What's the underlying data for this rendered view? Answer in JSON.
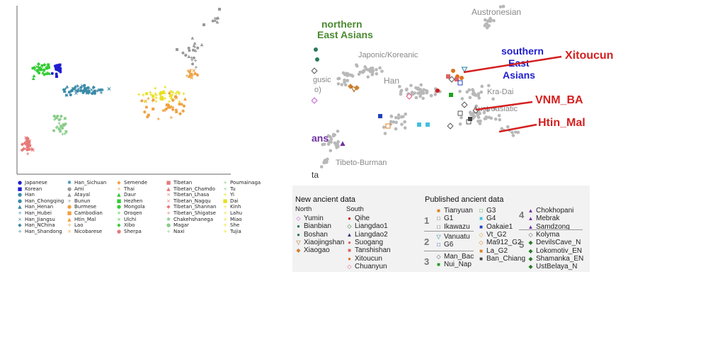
{
  "chart_data": [
    {
      "type": "scatter",
      "title": "",
      "xlabel": "",
      "ylabel": "",
      "legend_position": "bottom",
      "series": [
        {
          "name": "Japanese",
          "color": "#1f1fd0",
          "marker": "●"
        },
        {
          "name": "Korean",
          "color": "#1f1fd0",
          "marker": "■"
        },
        {
          "name": "Han",
          "color": "#3a8aa8",
          "marker": "●"
        },
        {
          "name": "Han_Chongqing",
          "color": "#3a8aa8",
          "marker": "●"
        },
        {
          "name": "Han_Henan",
          "color": "#3a8aa8",
          "marker": "▲"
        },
        {
          "name": "Han_Hubei",
          "color": "#3a8aa8",
          "marker": "+"
        },
        {
          "name": "Han_Jiangsu",
          "color": "#3a8aa8",
          "marker": "×"
        },
        {
          "name": "Han_NChina",
          "color": "#3a8aa8",
          "marker": "◆"
        },
        {
          "name": "Han_Shandong",
          "color": "#3a8aa8",
          "marker": "+"
        },
        {
          "name": "Han_Sichuan",
          "color": "#3a8aa8",
          "marker": "✱"
        },
        {
          "name": "Ami",
          "color": "#999999",
          "marker": "●"
        },
        {
          "name": "Atayal",
          "color": "#999999",
          "marker": "▲"
        },
        {
          "name": "Bunun",
          "color": "#999999",
          "marker": "+"
        },
        {
          "name": "Burmese",
          "color": "#f0a040",
          "marker": "●"
        },
        {
          "name": "Cambodian",
          "color": "#f0a040",
          "marker": "■"
        },
        {
          "name": "Htin_Mal",
          "color": "#f0a040",
          "marker": "▲"
        },
        {
          "name": "Lao",
          "color": "#f0a040",
          "marker": "+"
        },
        {
          "name": "Nicobarese",
          "color": "#f0a040",
          "marker": "×"
        },
        {
          "name": "Semende",
          "color": "#f0a040",
          "marker": "◆"
        },
        {
          "name": "Thai",
          "color": "#f0a040",
          "marker": "+"
        },
        {
          "name": "Daur",
          "color": "#33cc33",
          "marker": "▲"
        },
        {
          "name": "Hezhen",
          "color": "#33cc33",
          "marker": "■"
        },
        {
          "name": "Mongola",
          "color": "#33cc33",
          "marker": "●"
        },
        {
          "name": "Oroqen",
          "color": "#33cc33",
          "marker": "+"
        },
        {
          "name": "Ulchi",
          "color": "#33cc33",
          "marker": "×"
        },
        {
          "name": "Xibo",
          "color": "#33cc33",
          "marker": "◆"
        },
        {
          "name": "Sherpa",
          "color": "#e87878",
          "marker": "●"
        },
        {
          "name": "Tibetan",
          "color": "#e87878",
          "marker": "■"
        },
        {
          "name": "Tibetan_Chamdo",
          "color": "#e87878",
          "marker": "▲"
        },
        {
          "name": "Tibetan_Lhasa",
          "color": "#e87878",
          "marker": "×"
        },
        {
          "name": "Tibetan_Nagqu",
          "color": "#e87878",
          "marker": "×"
        },
        {
          "name": "Tibetan_Shannan",
          "color": "#e87878",
          "marker": "◆"
        },
        {
          "name": "Tibetan_Shigatse",
          "color": "#e87878",
          "marker": "+"
        },
        {
          "name": "Chakehshanega",
          "color": "#88cc88",
          "marker": "✱"
        },
        {
          "name": "Magar",
          "color": "#88cc88",
          "marker": "●"
        },
        {
          "name": "Naxi",
          "color": "#88cc88",
          "marker": "+"
        },
        {
          "name": "Poumainaga",
          "color": "#88cc88",
          "marker": "+"
        },
        {
          "name": "Tu",
          "color": "#88cc88",
          "marker": "+"
        },
        {
          "name": "Yi",
          "color": "#e8e020",
          "marker": "+"
        },
        {
          "name": "Dai",
          "color": "#e8e020",
          "marker": "■"
        },
        {
          "name": "Kinh",
          "color": "#e8e020",
          "marker": "+"
        },
        {
          "name": "Lahu",
          "color": "#e8e020",
          "marker": "+"
        },
        {
          "name": "Miao",
          "color": "#e8e020",
          "marker": "+"
        },
        {
          "name": "She",
          "color": "#e8e020",
          "marker": "+"
        },
        {
          "name": "Tujia",
          "color": "#e8e020",
          "marker": "+"
        }
      ]
    },
    {
      "type": "scatter",
      "title": "",
      "region_labels": [
        {
          "text": "northern",
          "color": "#4a8a30"
        },
        {
          "text": "East Asians",
          "color": "#4a8a30"
        },
        {
          "text": "Austronesian",
          "color": "#888888"
        },
        {
          "text": "Japonic/Koreanic",
          "color": "#888888"
        },
        {
          "text": "southern",
          "color": "#2020d0"
        },
        {
          "text": "East",
          "color": "#2020d0"
        },
        {
          "text": "Asians",
          "color": "#2020d0"
        },
        {
          "text": "Han",
          "color": "#888888"
        },
        {
          "text": "gusic",
          "color": "#888888"
        },
        {
          "text": "o)",
          "color": "#888888"
        },
        {
          "text": "Kra-Dai",
          "color": "#888888"
        },
        {
          "text": "Austroasiatic",
          "color": "#888888"
        },
        {
          "text": "ans",
          "color": "#7030a0"
        },
        {
          "text": "Tibeto-Burman",
          "color": "#888888"
        },
        {
          "text": "ta",
          "color": "#333333"
        }
      ],
      "callouts": [
        "Xitoucun",
        "VNM_BA",
        "Htin_Mal"
      ],
      "legend": {
        "new_title": "New ancient data",
        "north_header": "North",
        "south_header": "South",
        "north": [
          {
            "name": "Yumin",
            "color": "#c060d0",
            "marker": "◇"
          },
          {
            "name": "Bianbian",
            "color": "#2a7a5a",
            "marker": "●"
          },
          {
            "name": "Boshan",
            "color": "#2a7a5a",
            "marker": "●"
          },
          {
            "name": "Xiaojingshan",
            "color": "#a06010",
            "marker": "▽"
          },
          {
            "name": "Xiaogao",
            "color": "#d08030",
            "marker": "◆"
          }
        ],
        "south": [
          {
            "name": "Qihe",
            "color": "#cc2020",
            "marker": "●"
          },
          {
            "name": "Liangdao1",
            "color": "#2a7a2a",
            "marker": "◇"
          },
          {
            "name": "Liangdao2",
            "color": "#303080",
            "marker": "▲"
          },
          {
            "name": "Suogang",
            "color": "#e06060",
            "marker": "●"
          },
          {
            "name": "Tanshishan",
            "color": "#e06060",
            "marker": "■"
          },
          {
            "name": "Xitoucun",
            "color": "#e07020",
            "marker": "●"
          },
          {
            "name": "Chuanyun",
            "color": "#e06080",
            "marker": "◇"
          }
        ],
        "published_title": "Published ancient data",
        "groups": [
          {
            "num": "1",
            "items": [
              {
                "name": "Tianyuan",
                "color": "#e08020",
                "marker": "■"
              },
              {
                "name": "G1",
                "color": "#555555",
                "marker": "□"
              },
              {
                "name": "Ikawazu",
                "color": "#555555",
                "marker": "□"
              }
            ]
          },
          {
            "num": "2",
            "items": [
              {
                "name": "Vanuatu",
                "color": "#2080a0",
                "marker": "▽"
              },
              {
                "name": "G6",
                "color": "#2040c0",
                "marker": "□"
              }
            ]
          },
          {
            "num": "3",
            "items": [
              {
                "name": "Man_Bac",
                "color": "#555555",
                "marker": "◇"
              },
              {
                "name": "Nui_Nap",
                "color": "#20a020",
                "marker": "■"
              }
            ]
          },
          {
            "num": "",
            "items": [
              {
                "name": "G3",
                "color": "#20a020",
                "marker": "□"
              },
              {
                "name": "G4",
                "color": "#40c0e0",
                "marker": "■"
              },
              {
                "name": "Oakaie1",
                "color": "#2040c0",
                "marker": "■"
              },
              {
                "name": "Vt_G2",
                "color": "#e0a040",
                "marker": "◇"
              },
              {
                "name": "Ma912_G2",
                "color": "#e08020",
                "marker": "◇"
              },
              {
                "name": "La_G2",
                "color": "#e08020",
                "marker": "■"
              },
              {
                "name": "Ban_Chiang",
                "color": "#444444",
                "marker": "■"
              }
            ]
          },
          {
            "num": "4",
            "items": [
              {
                "name": "Chokhopani",
                "color": "#7030a0",
                "marker": "▲"
              },
              {
                "name": "Mebrak",
                "color": "#7030a0",
                "marker": "▲"
              },
              {
                "name": "Samdzong",
                "color": "#7030a0",
                "marker": "▲"
              }
            ]
          },
          {
            "num": "5",
            "items": [
              {
                "name": "Kolyma",
                "color": "#555555",
                "marker": "◇"
              },
              {
                "name": "DevilsCave_N",
                "color": "#2a7a2a",
                "marker": "◆"
              },
              {
                "name": "Lokomotiv_EN",
                "color": "#2a7a2a",
                "marker": "◆"
              },
              {
                "name": "Shamanka_EN",
                "color": "#2a7a2a",
                "marker": "◆"
              },
              {
                "name": "UstBelaya_N",
                "color": "#2a7a2a",
                "marker": "◆"
              }
            ]
          }
        ]
      }
    }
  ]
}
